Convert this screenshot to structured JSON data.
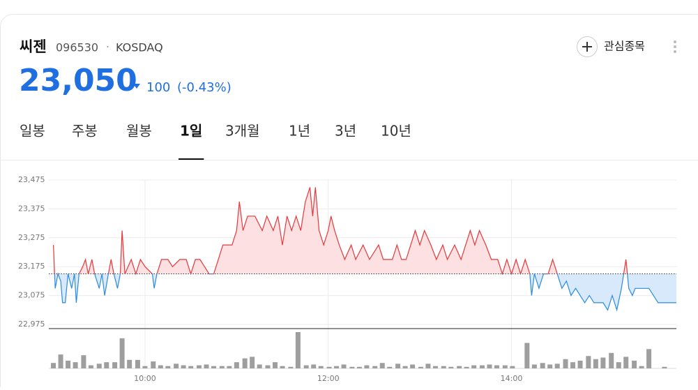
{
  "header": {
    "name": "씨젠",
    "code": "096530",
    "separator": "·",
    "market": "KOSDAQ",
    "price": "23,050",
    "change": "100",
    "change_pct": "(-0.43%)",
    "watch_button": "관심종목"
  },
  "tabs": [
    "일봉",
    "주봉",
    "월봉",
    "1일",
    "3개월",
    "1년",
    "3년",
    "10년"
  ],
  "selected_tab": "1일",
  "chart_data": [
    {
      "type": "line",
      "baseline": 23150,
      "colors": {
        "above": "#e5383b",
        "below": "#2a8be0",
        "fill_above": "#fde0e1",
        "fill_below": "#d8e9fb"
      },
      "x": [
        9.0,
        9.02,
        9.05,
        9.08,
        9.1,
        9.13,
        9.16,
        9.2,
        9.23,
        9.25,
        9.28,
        9.32,
        9.35,
        9.38,
        9.42,
        9.45,
        9.5,
        9.53,
        9.56,
        9.6,
        9.63,
        9.66,
        9.7,
        9.73,
        9.75,
        9.78,
        9.85,
        9.9,
        9.95,
        10.0,
        10.08,
        10.1,
        10.13,
        10.18,
        10.25,
        10.3,
        10.38,
        10.45,
        10.5,
        10.55,
        10.6,
        10.7,
        10.75,
        10.8,
        10.85,
        10.95,
        11.0,
        11.03,
        11.07,
        11.12,
        11.2,
        11.28,
        11.33,
        11.4,
        11.45,
        11.5,
        11.55,
        11.6,
        11.65,
        11.7,
        11.75,
        11.8,
        11.83,
        11.86,
        11.9,
        11.95,
        12.0,
        12.03,
        12.07,
        12.12,
        12.18,
        12.25,
        12.3,
        12.38,
        12.45,
        12.55,
        12.6,
        12.7,
        12.75,
        12.8,
        12.85,
        12.9,
        12.95,
        13.0,
        13.05,
        13.12,
        13.18,
        13.25,
        13.3,
        13.38,
        13.45,
        13.5,
        13.55,
        13.6,
        13.65,
        13.72,
        13.78,
        13.85,
        13.9,
        13.95,
        14.0,
        14.05,
        14.1,
        14.15,
        14.2,
        14.22,
        14.25,
        14.3,
        14.35,
        14.4,
        14.45,
        14.5,
        14.55,
        14.6,
        14.65,
        14.7,
        14.75,
        14.8,
        14.85,
        14.9,
        14.95,
        15.0,
        15.05,
        15.1,
        15.15,
        15.2,
        15.25,
        15.28,
        15.32,
        15.35,
        15.5,
        15.6,
        15.8
      ],
      "series": [
        {
          "values": [
            23250,
            23100,
            23150,
            23125,
            23050,
            23050,
            23150,
            23100,
            23150,
            23050,
            23150,
            23175,
            23200,
            23150,
            23200,
            23150,
            23100,
            23150,
            23075,
            23150,
            23200,
            23150,
            23100,
            23150,
            23300,
            23150,
            23200,
            23150,
            23200,
            23175,
            23150,
            23100,
            23150,
            23200,
            23200,
            23175,
            23200,
            23200,
            23150,
            23200,
            23200,
            23150,
            23150,
            23200,
            23250,
            23250,
            23300,
            23400,
            23300,
            23350,
            23350,
            23300,
            23350,
            23300,
            23350,
            23250,
            23350,
            23300,
            23350,
            23300,
            23400,
            23450,
            23350,
            23450,
            23300,
            23250,
            23300,
            23350,
            23300,
            23250,
            23200,
            23250,
            23200,
            23250,
            23200,
            23250,
            23200,
            23200,
            23250,
            23200,
            23200,
            23250,
            23300,
            23250,
            23300,
            23250,
            23200,
            23250,
            23200,
            23250,
            23200,
            23250,
            23300,
            23250,
            23300,
            23250,
            23200,
            23200,
            23150,
            23200,
            23150,
            23200,
            23150,
            23200,
            23150,
            23075,
            23150,
            23100,
            23150,
            23150,
            23200,
            23150,
            23100,
            23125,
            23075,
            23100,
            23075,
            23050,
            23075,
            23050,
            23050,
            23050,
            23025,
            23075,
            23025,
            23100,
            23200,
            23100,
            23075,
            23100,
            23100,
            23050,
            23050
          ]
        }
      ],
      "xlim": [
        8.95,
        15.8
      ],
      "ylim": [
        22975,
        23475
      ],
      "yticks": [
        {
          "value": 23475,
          "label": "23,475"
        },
        {
          "value": 23375,
          "label": "23,375"
        },
        {
          "value": 23275,
          "label": "23,275"
        },
        {
          "value": 23175,
          "label": "23,175"
        },
        {
          "value": 23075,
          "label": "23,075"
        },
        {
          "value": 22975,
          "label": "22,975"
        }
      ],
      "xticks": [
        {
          "value": 10,
          "label": "10:00"
        },
        {
          "value": 12,
          "label": "12:00"
        },
        {
          "value": 14,
          "label": "14:00"
        }
      ],
      "grid": true
    },
    {
      "type": "bar",
      "color": "#9e9e9e",
      "x": [
        9.0,
        9.08,
        9.16,
        9.24,
        9.33,
        9.41,
        9.5,
        9.58,
        9.67,
        9.75,
        9.83,
        9.92,
        10.0,
        10.09,
        10.17,
        10.25,
        10.34,
        10.42,
        10.5,
        10.59,
        10.67,
        10.75,
        10.84,
        10.92,
        11.0,
        11.09,
        11.17,
        11.25,
        11.34,
        11.42,
        11.5,
        11.59,
        11.67,
        11.76,
        11.84,
        11.92,
        12.01,
        12.09,
        12.17,
        12.26,
        12.34,
        12.42,
        12.51,
        12.59,
        12.67,
        12.76,
        12.84,
        12.92,
        13.01,
        13.09,
        13.17,
        13.26,
        13.34,
        13.43,
        13.51,
        13.59,
        13.68,
        13.76,
        13.84,
        13.93,
        14.01,
        14.17,
        14.25,
        14.34,
        14.42,
        14.5,
        14.59,
        14.67,
        14.75,
        14.84,
        14.92,
        15.0,
        15.09,
        15.17,
        15.25,
        15.34,
        15.42,
        15.5,
        15.67
      ],
      "values": [
        7,
        18,
        10,
        8,
        17,
        4,
        6,
        8,
        8,
        39,
        11,
        11,
        3,
        9,
        4,
        3,
        6,
        4,
        3,
        4,
        5,
        3,
        3,
        3,
        8,
        13,
        15,
        5,
        4,
        8,
        3,
        2,
        47,
        4,
        5,
        3,
        2,
        3,
        5,
        2,
        2,
        4,
        3,
        7,
        2,
        6,
        3,
        5,
        2,
        6,
        3,
        3,
        2,
        3,
        2,
        4,
        4,
        5,
        4,
        4,
        3,
        33,
        5,
        7,
        5,
        6,
        12,
        8,
        10,
        16,
        12,
        14,
        20,
        8,
        15,
        10,
        3,
        25,
        2
      ]
    }
  ]
}
